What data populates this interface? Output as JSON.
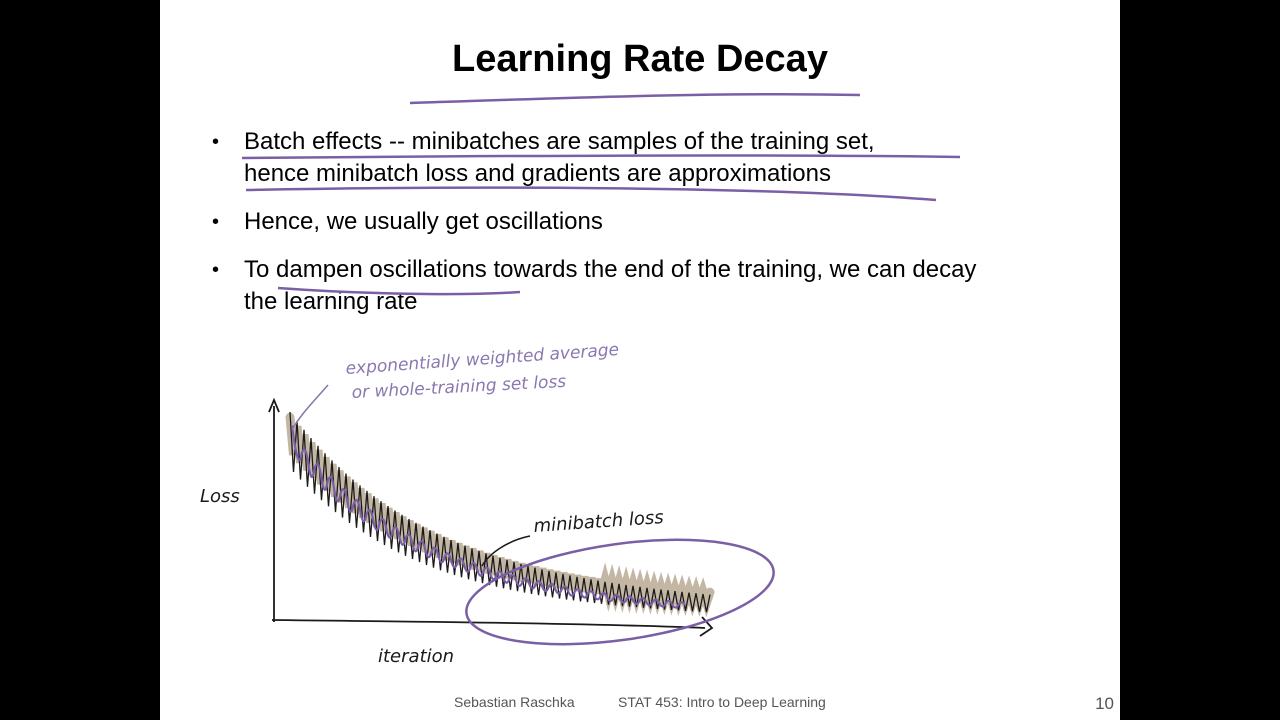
{
  "slide": {
    "title": "Learning Rate Decay",
    "bullets": [
      {
        "line1": "Batch effects -- minibatches are samples of the training set,",
        "line2": "hence minibatch loss and gradients are approximations"
      },
      {
        "line1": "Hence, we usually get oscillations",
        "line2": ""
      },
      {
        "line1": "To dampen oscillations towards the end of the training, we can decay",
        "line2": "the learning rate"
      }
    ],
    "footer": {
      "author": "Sebastian Raschka",
      "course": "STAT 453: Intro to Deep Learning",
      "page": "10"
    }
  },
  "sketch": {
    "annotation_line1": "exponentially weighted average",
    "annotation_line2": "or whole-training set loss",
    "minibatch_label": "minibatch loss",
    "y_label": "Loss",
    "x_label": "iteration",
    "colors": {
      "purple": "#7a5fa6",
      "tan": "#b9a993",
      "ink": "#1a1a1a",
      "annotation": "#8a78b0"
    }
  }
}
